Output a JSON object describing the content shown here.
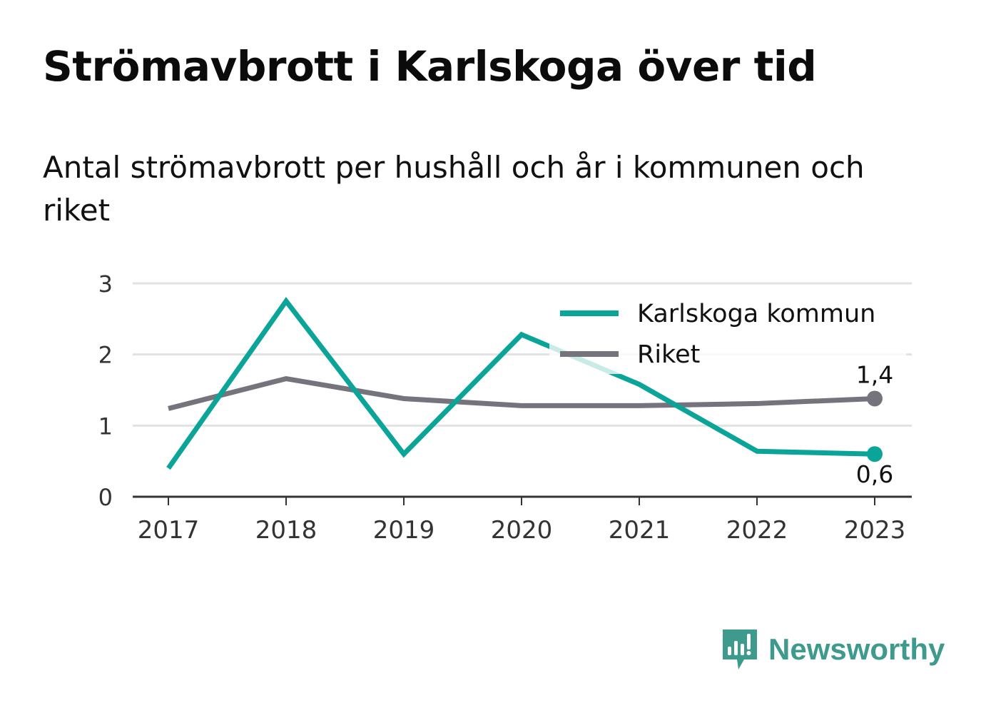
{
  "title": "Strömavbrott i Karlskoga över tid",
  "subtitle": "Antal strömavbrott per hushåll och år i kommunen och riket",
  "brand": "Newsworthy",
  "colors": {
    "karlskoga": "#0aa598",
    "riket": "#75747d",
    "grid": "#e2e2e2",
    "axis": "#333333",
    "brand": "#3f9a8e"
  },
  "chart_data": {
    "type": "line",
    "categories": [
      "2017",
      "2018",
      "2019",
      "2020",
      "2021",
      "2022",
      "2023"
    ],
    "series": [
      {
        "name": "Karlskoga kommun",
        "color": "#0aa598",
        "values": [
          0.4,
          2.75,
          0.6,
          2.28,
          1.58,
          0.64,
          0.6
        ],
        "end_label": "0,6"
      },
      {
        "name": "Riket",
        "color": "#75747d",
        "values": [
          1.24,
          1.66,
          1.38,
          1.28,
          1.28,
          1.31,
          1.38
        ],
        "end_label": "1,4"
      }
    ],
    "yticks": [
      "0",
      "1",
      "2",
      "3"
    ],
    "ylim": [
      0,
      3
    ],
    "grid": true,
    "legend": "top-right"
  }
}
